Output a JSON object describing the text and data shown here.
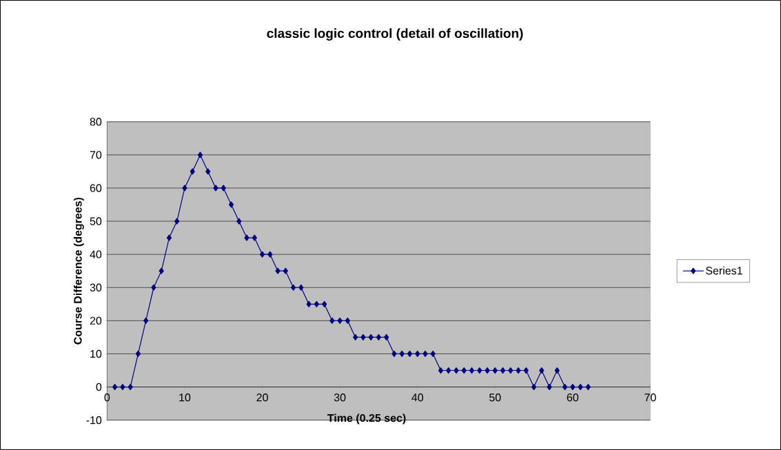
{
  "chart_data": {
    "type": "line",
    "title": "classic logic control (detail of oscillation)",
    "xlabel": "Time  (0.25 sec)",
    "ylabel": "Course Difference (degrees)",
    "x": [
      1,
      2,
      3,
      4,
      5,
      6,
      7,
      8,
      9,
      10,
      11,
      12,
      13,
      14,
      15,
      16,
      17,
      18,
      19,
      20,
      21,
      22,
      23,
      24,
      25,
      26,
      27,
      28,
      29,
      30,
      31,
      32,
      33,
      34,
      35,
      36,
      37,
      38,
      39,
      40,
      41,
      42,
      43,
      44,
      45,
      46,
      47,
      48,
      49,
      50,
      51,
      52,
      53,
      54,
      55,
      56,
      57,
      58,
      59,
      60,
      61,
      62
    ],
    "series": [
      {
        "name": "Series1",
        "color": "#000080",
        "values": [
          0,
          0,
          0,
          10,
          20,
          30,
          35,
          45,
          50,
          60,
          65,
          70,
          65,
          60,
          60,
          55,
          50,
          45,
          45,
          40,
          40,
          35,
          35,
          30,
          30,
          25,
          25,
          25,
          20,
          20,
          20,
          15,
          15,
          15,
          15,
          15,
          10,
          10,
          10,
          10,
          10,
          10,
          5,
          5,
          5,
          5,
          5,
          5,
          5,
          5,
          5,
          5,
          5,
          5,
          0,
          5,
          0,
          5,
          0,
          0,
          0,
          0
        ]
      }
    ],
    "xlim": [
      0,
      70
    ],
    "xticks": [
      0,
      10,
      20,
      30,
      40,
      50,
      60,
      70
    ],
    "ylim": [
      -10,
      80
    ],
    "yticks": [
      -10,
      0,
      10,
      20,
      30,
      40,
      50,
      60,
      70,
      80
    ],
    "grid": "y",
    "legend": "right",
    "marker": "diamond",
    "line_style": "solid"
  }
}
